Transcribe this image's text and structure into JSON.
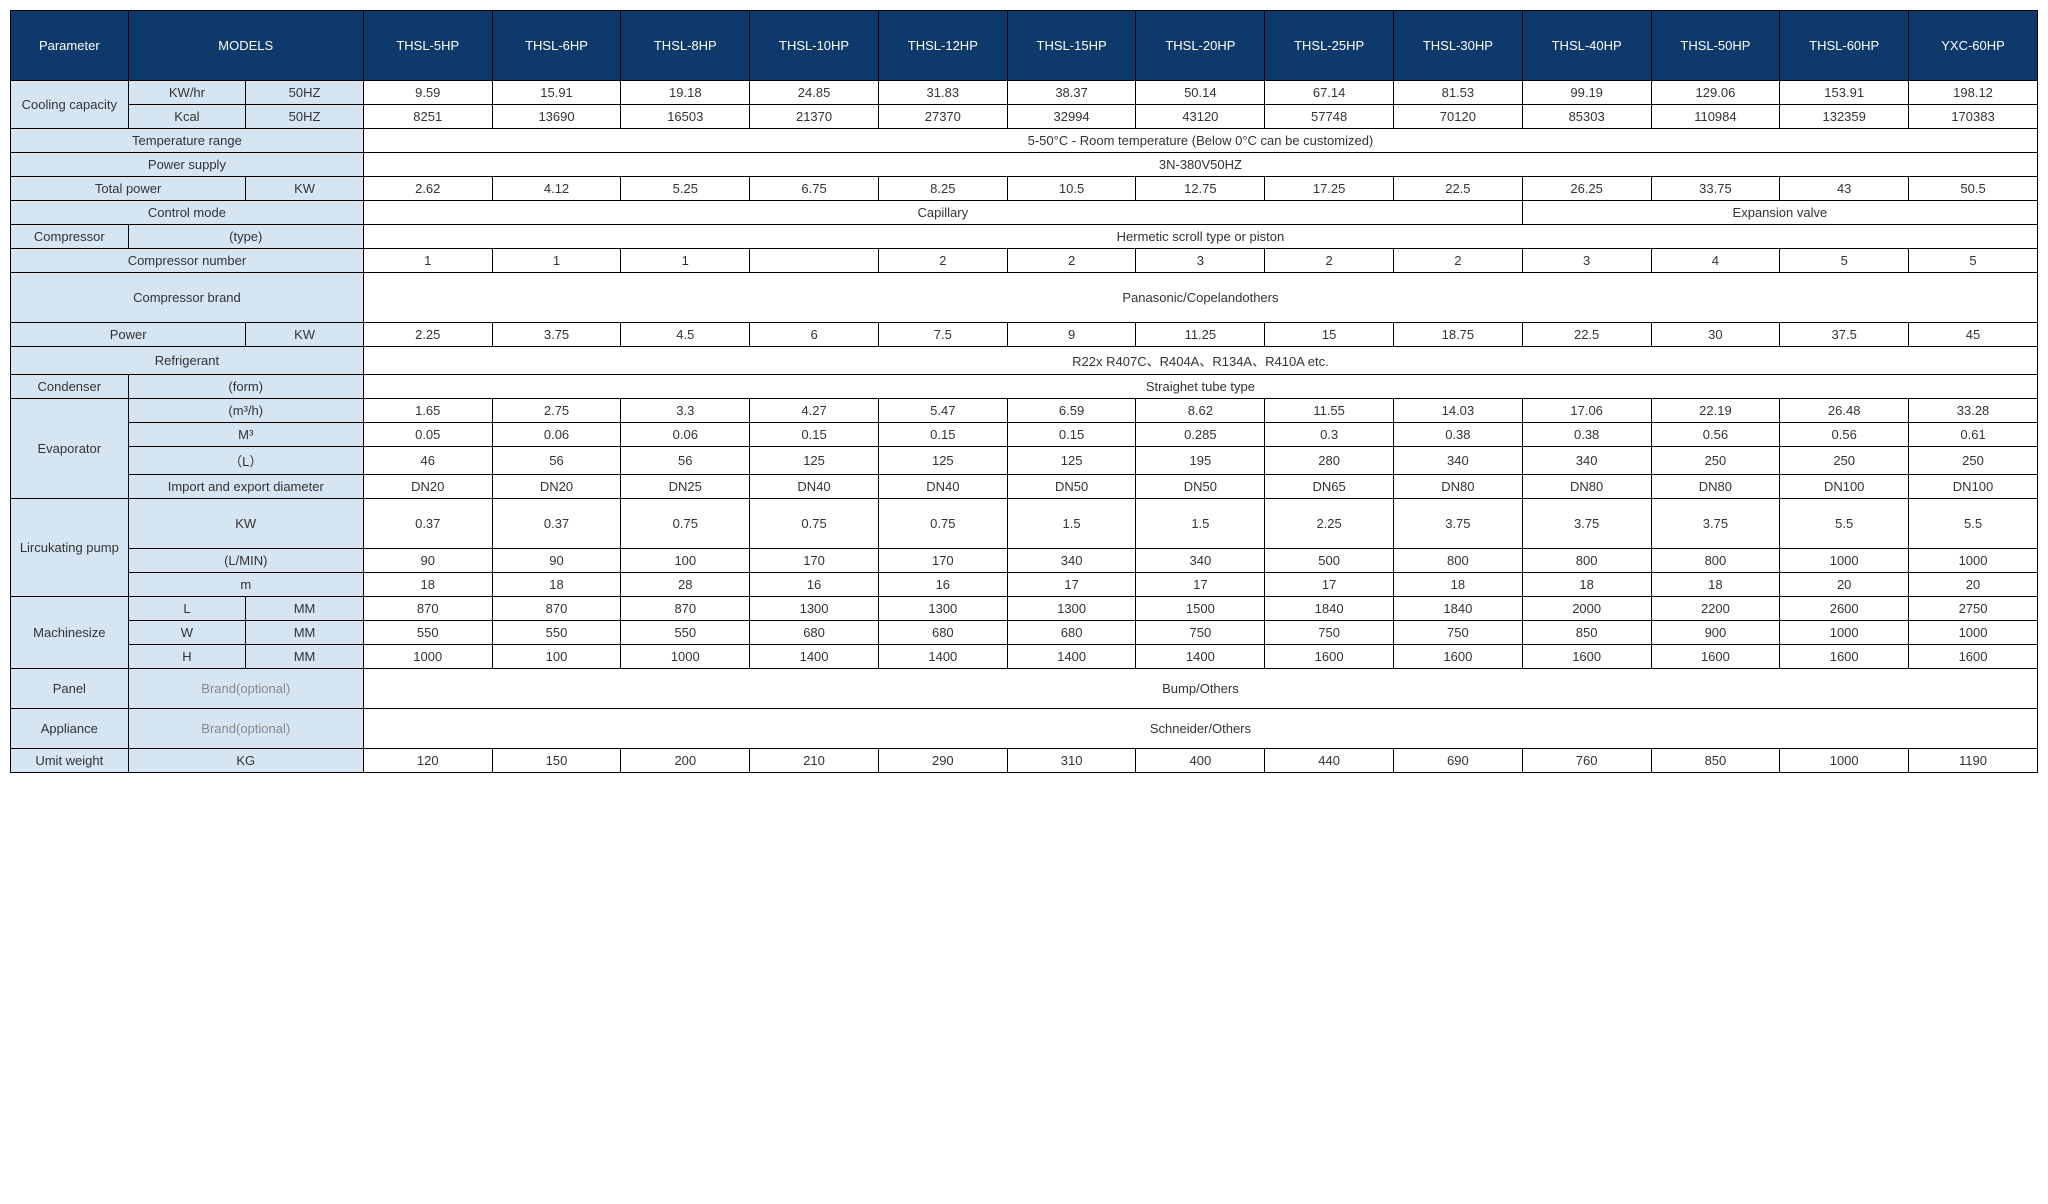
{
  "colors": {
    "header_bg": "#0d3a6b",
    "header_fg": "#ffffff",
    "label_bg": "#d5e5f2",
    "border": "#000000",
    "muted": "#888888"
  },
  "header": {
    "parameter": "Parameter",
    "models": "MODELS",
    "cols": [
      "THSL-5HP",
      "THSL-6HP",
      "THSL-8HP",
      "THSL-10HP",
      "THSL-12HP",
      "THSL-15HP",
      "THSL-20HP",
      "THSL-25HP",
      "THSL-30HP",
      "THSL-40HP",
      "THSL-50HP",
      "THSL-60HP",
      "YXC-60HP"
    ]
  },
  "rows": {
    "cooling_capacity": "Cooling capacity",
    "kwhr": "KW/hr",
    "hz50a": "50HZ",
    "kcal": "Kcal",
    "hz50b": "50HZ",
    "cooling_kw": [
      "9.59",
      "15.91",
      "19.18",
      "24.85",
      "31.83",
      "38.37",
      "50.14",
      "67.14",
      "81.53",
      "99.19",
      "129.06",
      "153.91",
      "198.12"
    ],
    "cooling_kcal": [
      "8251",
      "13690",
      "16503",
      "21370",
      "27370",
      "32994",
      "43120",
      "57748",
      "70120",
      "85303",
      "110984",
      "132359",
      "170383"
    ],
    "temp_range_label": "Temperature range",
    "temp_range_value": "5-50°C - Room temperature (Below 0°C can be customized)",
    "power_supply_label": "Power supply",
    "power_supply_value": "3N-380V50HZ",
    "total_power_label": "Total power",
    "kw_unit": "KW",
    "total_power": [
      "2.62",
      "4.12",
      "5.25",
      "6.75",
      "8.25",
      "10.5",
      "12.75",
      "17.25",
      "22.5",
      "26.25",
      "33.75",
      "43",
      "50.5"
    ],
    "control_mode_label": "Control mode",
    "control_mode_cap": "Capillary",
    "control_mode_exp": "Expansion valve",
    "compressor_label": "Compressor",
    "compressor_type_label": "(type)",
    "compressor_type_value": "Hermetic scroll type or piston",
    "compressor_number_label": "Compressor number",
    "compressor_number": [
      "1",
      "1",
      "1",
      "",
      "2",
      "2",
      "3",
      "2",
      "2",
      "3",
      "4",
      "5",
      "5"
    ],
    "compressor_brand_label": "Compressor brand",
    "compressor_brand_value": "Panasonic/Copelandothers",
    "power_label": "Power",
    "power": [
      "2.25",
      "3.75",
      "4.5",
      "6",
      "7.5",
      "9",
      "11.25",
      "15",
      "18.75",
      "22.5",
      "30",
      "37.5",
      "45"
    ],
    "refrigerant_label": "Refrigerant",
    "refrigerant_value": "R22x R407C、R404A、R134A、R410A etc.",
    "condenser_label": "Condenser",
    "condenser_form_label": "(form)",
    "condenser_form_value": "Straighet tube type",
    "evaporator_label": "Evaporator",
    "evap_m3h_label": "(m³/h)",
    "evap_m3h": [
      "1.65",
      "2.75",
      "3.3",
      "4.27",
      "5.47",
      "6.59",
      "8.62",
      "11.55",
      "14.03",
      "17.06",
      "22.19",
      "26.48",
      "33.28"
    ],
    "evap_m3_label": "M³",
    "evap_m3": [
      "0.05",
      "0.06",
      "0.06",
      "0.15",
      "0.15",
      "0.15",
      "0.285",
      "0.3",
      "0.38",
      "0.38",
      "0.56",
      "0.56",
      "0.61"
    ],
    "evap_l_label": "（L）",
    "evap_l": [
      "46",
      "56",
      "56",
      "125",
      "125",
      "125",
      "195",
      "280",
      "340",
      "340",
      "250",
      "250",
      "250"
    ],
    "evap_dia_label": "Import and export diameter",
    "evap_dia": [
      "DN20",
      "DN20",
      "DN25",
      "DN40",
      "DN40",
      "DN50",
      "DN50",
      "DN65",
      "DN80",
      "DN80",
      "DN80",
      "DN100",
      "DN100"
    ],
    "pump_label": "Lircukating pump",
    "pump_kw_label": "KW",
    "pump_kw": [
      "0.37",
      "0.37",
      "0.75",
      "0.75",
      "0.75",
      "1.5",
      "1.5",
      "2.25",
      "3.75",
      "3.75",
      "3.75",
      "5.5",
      "5.5"
    ],
    "pump_lmin_label": "(L/MIN)",
    "pump_lmin": [
      "90",
      "90",
      "100",
      "170",
      "170",
      "340",
      "340",
      "500",
      "800",
      "800",
      "800",
      "1000",
      "1000"
    ],
    "pump_m_label": "m",
    "pump_m": [
      "18",
      "18",
      "28",
      "16",
      "16",
      "17",
      "17",
      "17",
      "18",
      "18",
      "18",
      "20",
      "20"
    ],
    "machinesize_label": "Machinesize",
    "size_l_label": "L",
    "mm": "MM",
    "size_l": [
      "870",
      "870",
      "870",
      "1300",
      "1300",
      "1300",
      "1500",
      "1840",
      "1840",
      "2000",
      "2200",
      "2600",
      "2750"
    ],
    "size_w_label": "W",
    "size_w": [
      "550",
      "550",
      "550",
      "680",
      "680",
      "680",
      "750",
      "750",
      "750",
      "850",
      "900",
      "1000",
      "1000"
    ],
    "size_h_label": "H",
    "size_h": [
      "1000",
      "100",
      "1000",
      "1400",
      "1400",
      "1400",
      "1400",
      "1600",
      "1600",
      "1600",
      "1600",
      "1600",
      "1600"
    ],
    "panel_label": "Panel",
    "brand_optional": "Brand(optional)",
    "panel_value": "Bump/Others",
    "appliance_label": "Appliance",
    "appliance_value": "Schneider/Others",
    "weight_label": "Umit weight",
    "kg": "KG",
    "weight": [
      "120",
      "150",
      "200",
      "210",
      "290",
      "310",
      "400",
      "440",
      "690",
      "760",
      "850",
      "1000",
      "1190"
    ]
  }
}
